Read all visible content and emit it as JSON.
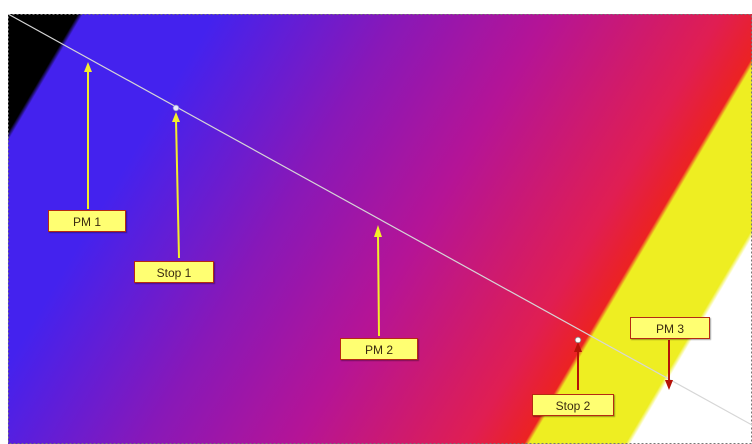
{
  "colors": {
    "black": "#000000",
    "blue": "#4422ee",
    "purple": "#9a14ae",
    "magenta": "#d91e6a",
    "red": "#ec2222",
    "yellow": "#eeee22",
    "white": "#ffffff",
    "guide_line": "#c8c8c8",
    "pointer_yellow": "#f3ee2a",
    "pointer_red": "#b51208",
    "label_fill": "#ffff72",
    "label_border": "#b52a12"
  },
  "labels": {
    "pm1": "PM 1",
    "stop1": "Stop 1",
    "pm2": "PM 2",
    "stop2": "Stop 2",
    "pm3": "PM 3"
  }
}
